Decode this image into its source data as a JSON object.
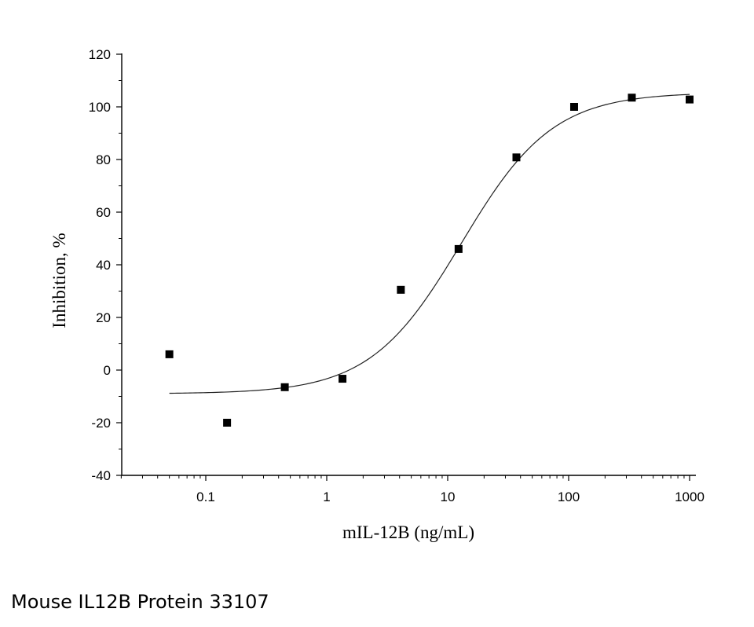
{
  "chart_data": {
    "type": "scatter",
    "title": "",
    "xlabel": "mIL-12B (ng/mL)",
    "ylabel": "Inhibition, %",
    "x_scale": "log",
    "xlim": [
      0.02,
      1000
    ],
    "ylim": [
      -40,
      120
    ],
    "x_ticks": [
      0.1,
      1,
      10,
      100,
      1000
    ],
    "x_tick_labels": [
      "0.1",
      "1",
      "10",
      "100",
      "1000"
    ],
    "y_ticks": [
      -40,
      -20,
      0,
      20,
      40,
      60,
      80,
      100,
      120
    ],
    "y_tick_labels": [
      "-40",
      "-20",
      "0",
      "20",
      "40",
      "60",
      "80",
      "100",
      "120"
    ],
    "grid": false,
    "marker": "filled-square",
    "series": [
      {
        "points": [
          {
            "x": 0.05,
            "y": 6
          },
          {
            "x": 0.15,
            "y": -20
          },
          {
            "x": 0.45,
            "y": -6.5
          },
          {
            "x": 1.35,
            "y": -3.3
          },
          {
            "x": 4.1,
            "y": 30.5
          },
          {
            "x": 12.3,
            "y": 46
          },
          {
            "x": 37,
            "y": 80.8
          },
          {
            "x": 111,
            "y": 100
          },
          {
            "x": 333,
            "y": 103.5
          },
          {
            "x": 1000,
            "y": 102.8
          }
        ]
      }
    ],
    "fit_curve": {
      "type": "sigmoid",
      "bottom": -9,
      "top": 105.5,
      "ec50": 13,
      "hill": 1.15,
      "x_range": [
        0.05,
        1000
      ]
    }
  },
  "caption": "Mouse IL12B Protein 33107"
}
